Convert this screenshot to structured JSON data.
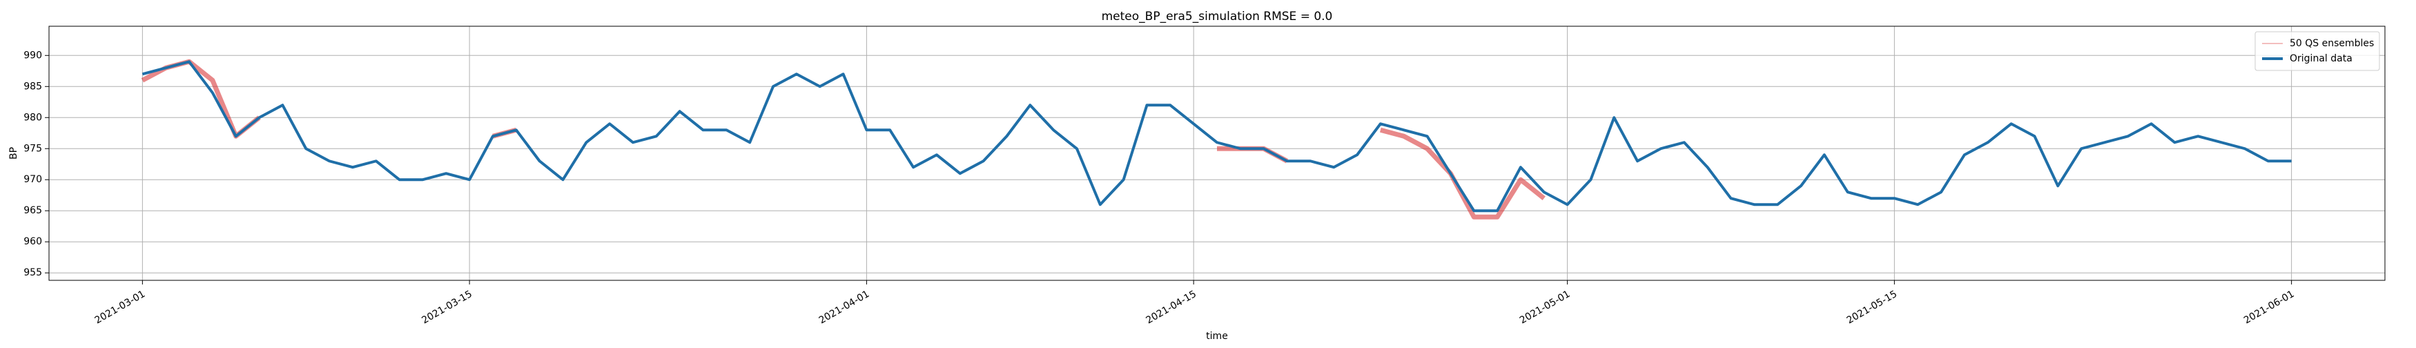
{
  "chart_data": {
    "type": "line",
    "title": "meteo_BP_era5_simulation RMSE = 0.0",
    "x_label": "time",
    "y_label": "BP",
    "x": [
      "2021-03-01",
      "2021-03-02",
      "2021-03-03",
      "2021-03-04",
      "2021-03-05",
      "2021-03-06",
      "2021-03-07",
      "2021-03-08",
      "2021-03-09",
      "2021-03-10",
      "2021-03-11",
      "2021-03-12",
      "2021-03-13",
      "2021-03-14",
      "2021-03-15",
      "2021-03-16",
      "2021-03-17",
      "2021-03-18",
      "2021-03-19",
      "2021-03-20",
      "2021-03-21",
      "2021-03-22",
      "2021-03-23",
      "2021-03-24",
      "2021-03-25",
      "2021-03-26",
      "2021-03-27",
      "2021-03-28",
      "2021-03-29",
      "2021-03-30",
      "2021-03-31",
      "2021-04-01",
      "2021-04-02",
      "2021-04-03",
      "2021-04-04",
      "2021-04-05",
      "2021-04-06",
      "2021-04-07",
      "2021-04-08",
      "2021-04-09",
      "2021-04-10",
      "2021-04-11",
      "2021-04-12",
      "2021-04-13",
      "2021-04-14",
      "2021-04-15",
      "2021-04-16",
      "2021-04-17",
      "2021-04-18",
      "2021-04-19",
      "2021-04-20",
      "2021-04-21",
      "2021-04-22",
      "2021-04-23",
      "2021-04-24",
      "2021-04-25",
      "2021-04-26",
      "2021-04-27",
      "2021-04-28",
      "2021-04-29",
      "2021-04-30",
      "2021-05-01",
      "2021-05-02",
      "2021-05-03",
      "2021-05-04",
      "2021-05-05",
      "2021-05-06",
      "2021-05-07",
      "2021-05-08",
      "2021-05-09",
      "2021-05-10",
      "2021-05-11",
      "2021-05-12",
      "2021-05-13",
      "2021-05-14",
      "2021-05-15",
      "2021-05-16",
      "2021-05-17",
      "2021-05-18",
      "2021-05-19",
      "2021-05-20",
      "2021-05-21",
      "2021-05-22",
      "2021-05-23",
      "2021-05-24",
      "2021-05-25",
      "2021-05-26",
      "2021-05-27",
      "2021-05-28",
      "2021-05-29",
      "2021-05-30",
      "2021-05-31",
      "2021-06-01"
    ],
    "series": [
      {
        "name": "50 QS ensembles",
        "color": "#d62728",
        "values": [
          986,
          988,
          989,
          986,
          977,
          980,
          null,
          null,
          null,
          null,
          null,
          null,
          null,
          null,
          null,
          977,
          978,
          null,
          null,
          null,
          null,
          null,
          null,
          null,
          null,
          null,
          null,
          null,
          null,
          null,
          null,
          null,
          null,
          null,
          null,
          null,
          null,
          null,
          null,
          null,
          null,
          null,
          null,
          null,
          null,
          null,
          975,
          975,
          975,
          973,
          null,
          null,
          null,
          978,
          977,
          975,
          971,
          964,
          964,
          970,
          967,
          null,
          null,
          null,
          null,
          null,
          null,
          null,
          null,
          null,
          null,
          null,
          null,
          null,
          null,
          null,
          null,
          null,
          null,
          null,
          null,
          null,
          null,
          null,
          null,
          null,
          null,
          null,
          null,
          null,
          null,
          null,
          null
        ]
      },
      {
        "name": "Original data",
        "color": "#1f6fa8",
        "values": [
          987,
          988,
          989,
          984,
          977,
          980,
          982,
          975,
          973,
          972,
          973,
          970,
          970,
          971,
          970,
          977,
          978,
          973,
          970,
          976,
          979,
          976,
          977,
          981,
          978,
          978,
          976,
          985,
          987,
          985,
          987,
          978,
          978,
          972,
          974,
          971,
          973,
          977,
          982,
          978,
          975,
          966,
          970,
          982,
          982,
          979,
          976,
          975,
          975,
          973,
          973,
          972,
          974,
          979,
          978,
          977,
          971,
          965,
          965,
          972,
          968,
          966,
          970,
          980,
          973,
          975,
          976,
          972,
          967,
          966,
          966,
          969,
          974,
          968,
          967,
          967,
          966,
          968,
          974,
          976,
          979,
          977,
          969,
          975,
          976,
          977,
          979,
          976,
          977,
          976,
          975,
          973,
          973
        ]
      }
    ],
    "xlim": [
      "2021-02-25",
      "2021-06-05"
    ],
    "xticks": [
      "2021-03-01",
      "2021-03-15",
      "2021-04-01",
      "2021-04-15",
      "2021-05-01",
      "2021-05-15",
      "2021-06-01"
    ],
    "ylim": [
      953.8,
      994.7
    ],
    "yticks": [
      955,
      960,
      965,
      970,
      975,
      980,
      985,
      990
    ],
    "grid": true,
    "legend": "upper right"
  }
}
